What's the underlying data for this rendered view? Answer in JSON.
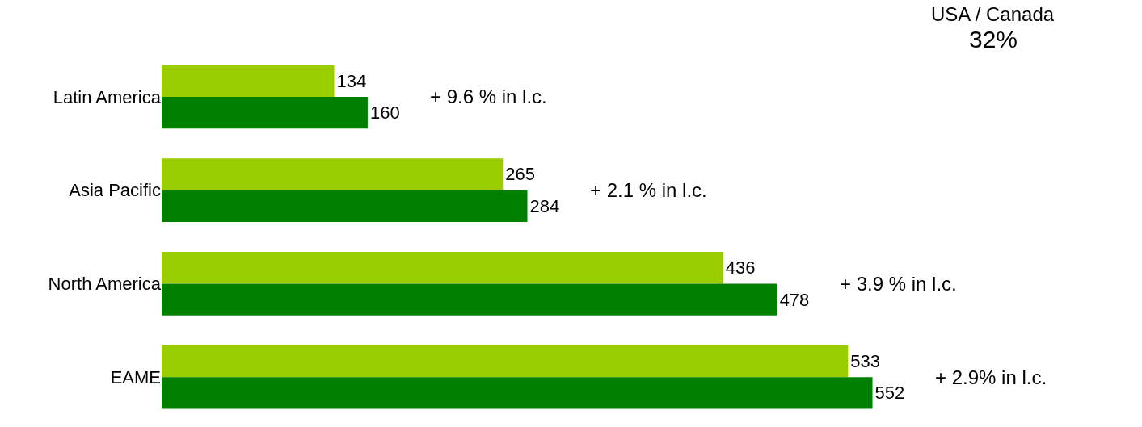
{
  "chart_data": {
    "type": "bar",
    "orientation": "horizontal",
    "title": "USA / Canada",
    "subtitle": "32%",
    "categories": [
      "Latin America",
      "Asia Pacific",
      "North America",
      "EAME"
    ],
    "series": [
      {
        "color": "#9acd00",
        "values": [
          134,
          265,
          436,
          533
        ]
      },
      {
        "color": "#008000",
        "values": [
          160,
          284,
          478,
          552
        ]
      }
    ],
    "data_labels": true,
    "annotations": [
      "+ 9.6 % in l.c.",
      "+ 2.1 % in l.c.",
      "+ 3.9 % in l.c.",
      "+ 2.9% in l.c."
    ]
  }
}
